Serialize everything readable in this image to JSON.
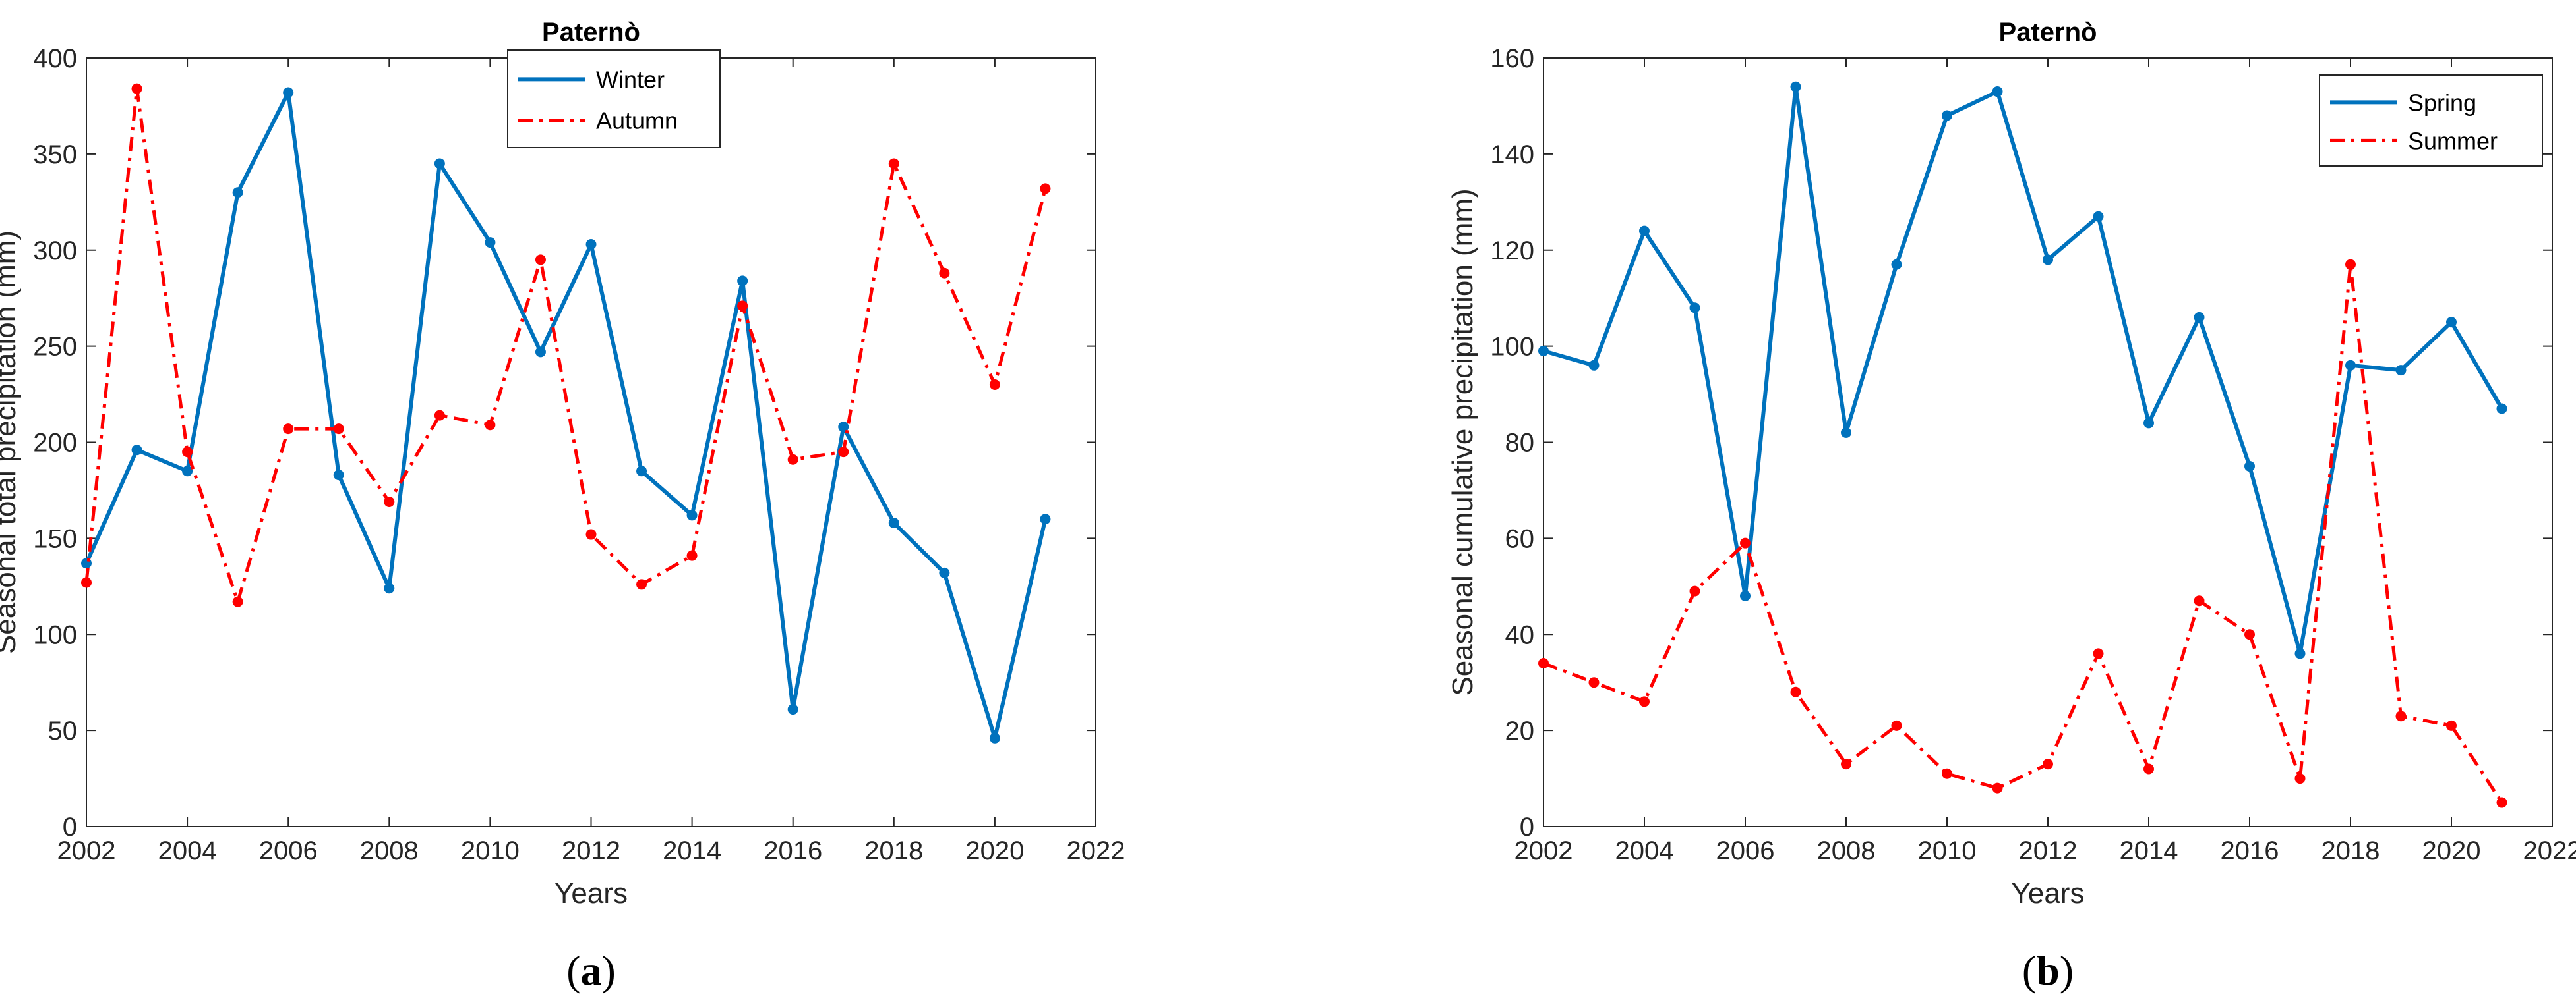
{
  "chart_data": [
    {
      "type": "line",
      "title": "Paternò",
      "xlabel": "Years",
      "ylabel": "Seasonal total precipitation (mm)",
      "xlim": [
        2002,
        2022
      ],
      "ylim": [
        0,
        400
      ],
      "xticks": [
        2002,
        2004,
        2006,
        2008,
        2010,
        2012,
        2014,
        2016,
        2018,
        2020,
        2022
      ],
      "yticks": [
        0,
        50,
        100,
        150,
        200,
        250,
        300,
        350,
        400
      ],
      "legend_position": "top-center",
      "caption": {
        "open": "(",
        "letter": "a",
        "close": ")"
      },
      "x": [
        2002,
        2003,
        2004,
        2005,
        2006,
        2007,
        2008,
        2009,
        2010,
        2011,
        2012,
        2013,
        2014,
        2015,
        2016,
        2017,
        2018,
        2019,
        2020,
        2021
      ],
      "series": [
        {
          "name": "Winter",
          "color": "#0072BD",
          "style": "solid",
          "values": [
            137,
            196,
            185,
            330,
            382,
            183,
            124,
            345,
            304,
            247,
            303,
            185,
            162,
            284,
            61,
            208,
            158,
            132,
            46,
            160
          ]
        },
        {
          "name": "Autumn",
          "color": "#FF0000",
          "style": "dashdot",
          "values": [
            127,
            384,
            195,
            117,
            207,
            207,
            169,
            214,
            209,
            295,
            152,
            126,
            141,
            271,
            191,
            195,
            345,
            288,
            230,
            332
          ]
        }
      ]
    },
    {
      "type": "line",
      "title": "Paternò",
      "xlabel": "Years",
      "ylabel": "Seasonal cumulative precipitation (mm)",
      "xlim": [
        2002,
        2022
      ],
      "ylim": [
        0,
        160
      ],
      "xticks": [
        2002,
        2004,
        2006,
        2008,
        2010,
        2012,
        2014,
        2016,
        2018,
        2020,
        2022
      ],
      "yticks": [
        0,
        20,
        40,
        60,
        80,
        100,
        120,
        140,
        160
      ],
      "legend_position": "top-right",
      "caption": {
        "open": "(",
        "letter": "b",
        "close": ")"
      },
      "x": [
        2002,
        2003,
        2004,
        2005,
        2006,
        2007,
        2008,
        2009,
        2010,
        2011,
        2012,
        2013,
        2014,
        2015,
        2016,
        2017,
        2018,
        2019,
        2020,
        2021
      ],
      "series": [
        {
          "name": "Spring",
          "color": "#0072BD",
          "style": "solid",
          "values": [
            99,
            96,
            124,
            108,
            48,
            154,
            82,
            117,
            148,
            153,
            118,
            127,
            84,
            106,
            75,
            36,
            96,
            95,
            105,
            87
          ]
        },
        {
          "name": "Summer",
          "color": "#FF0000",
          "style": "dashdot",
          "values": [
            34,
            30,
            26,
            49,
            59,
            28,
            13,
            21,
            11,
            8,
            13,
            36,
            12,
            47,
            40,
            10,
            117,
            23,
            21,
            5
          ]
        }
      ]
    }
  ]
}
